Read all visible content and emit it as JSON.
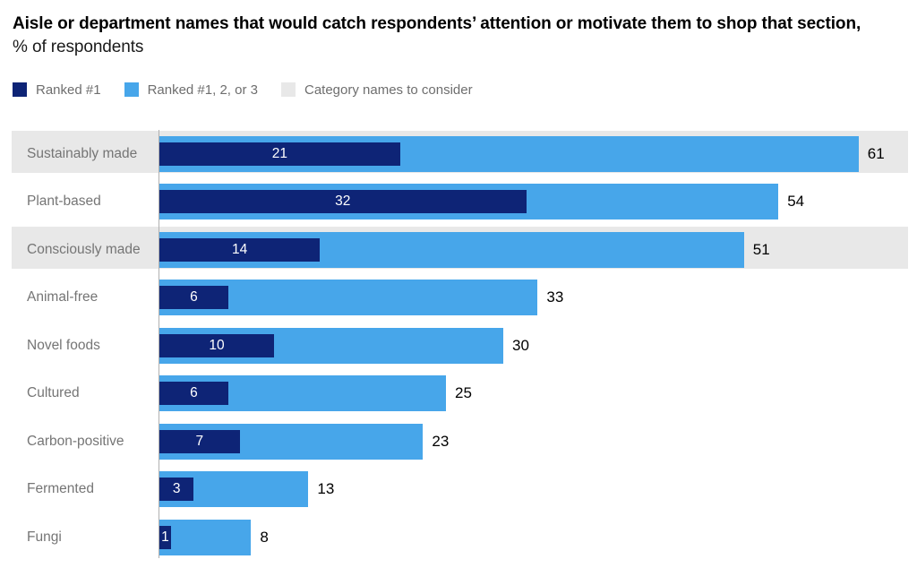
{
  "title": {
    "bold": "Aisle or department names that would catch respondents’ attention or motivate them to shop that section,",
    "regular": " % of respondents"
  },
  "legend": [
    {
      "label": "Ranked #1",
      "color": "#0e2476"
    },
    {
      "label": "Ranked #1, 2, or 3",
      "color": "#47a6ea"
    },
    {
      "label": "Category names to consider",
      "color": "#e8e8e8"
    }
  ],
  "chart_data": {
    "type": "bar",
    "orientation": "horizontal",
    "title": "Aisle or department names that would catch respondents’ attention or motivate them to shop that section, % of respondents",
    "categories": [
      "Sustainably made",
      "Plant-based",
      "Consciously made",
      "Animal-free",
      "Novel foods",
      "Cultured",
      "Carbon-positive",
      "Fermented",
      "Fungi"
    ],
    "series": [
      {
        "name": "Ranked #1",
        "color": "#0e2476",
        "values": [
          21,
          32,
          14,
          6,
          10,
          6,
          7,
          3,
          1
        ]
      },
      {
        "name": "Ranked #1, 2, or 3",
        "color": "#47a6ea",
        "values": [
          61,
          54,
          51,
          33,
          30,
          25,
          23,
          13,
          8
        ]
      }
    ],
    "highlighted_rows": [
      true,
      false,
      true,
      false,
      false,
      false,
      false,
      false,
      false
    ],
    "highlight_legend_label": "Category names to consider",
    "highlight_color": "#e8e8e8",
    "value_labels_inside": "Ranked #1 values shown in white inside dark bars",
    "value_labels_outside": "Ranked #1, 2, or 3 values shown in black at bar ends",
    "xlim": [
      0,
      66
    ],
    "grid": false,
    "legend_position": "top"
  }
}
